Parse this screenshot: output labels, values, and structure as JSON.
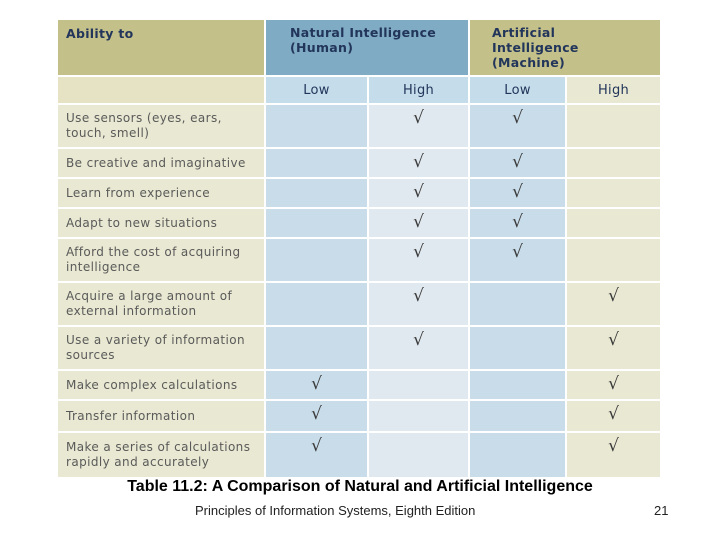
{
  "table": {
    "header": {
      "ability": "Ability to",
      "natural_line1": "Natural Intelligence",
      "natural_line2": "(Human)",
      "artificial_line1": "Artificial Intelligence",
      "artificial_line2": "(Machine)",
      "low": "Low",
      "high": "High"
    },
    "check_symbol": "√",
    "rows": [
      {
        "label": "Use sensors (eyes, ears, touch, smell)",
        "natural_low": "",
        "natural_high": "√",
        "artificial_low": "√",
        "artificial_high": ""
      },
      {
        "label": "Be creative and imaginative",
        "natural_low": "",
        "natural_high": "√",
        "artificial_low": "√",
        "artificial_high": ""
      },
      {
        "label": "Learn from experience",
        "natural_low": "",
        "natural_high": "√",
        "artificial_low": "√",
        "artificial_high": ""
      },
      {
        "label": "Adapt to new situations",
        "natural_low": "",
        "natural_high": "√",
        "artificial_low": "√",
        "artificial_high": ""
      },
      {
        "label": "Afford the cost of acquiring intelligence",
        "natural_low": "",
        "natural_high": "√",
        "artificial_low": "√",
        "artificial_high": ""
      },
      {
        "label": "Acquire a large amount of external information",
        "natural_low": "",
        "natural_high": "√",
        "artificial_low": "",
        "artificial_high": "√"
      },
      {
        "label": "Use a variety of information sources",
        "natural_low": "",
        "natural_high": "√",
        "artificial_low": "",
        "artificial_high": "√"
      },
      {
        "label": "Make complex calculations",
        "natural_low": "√",
        "natural_high": "",
        "artificial_low": "",
        "artificial_high": "√"
      },
      {
        "label": "Transfer information",
        "natural_low": "√",
        "natural_high": "",
        "artificial_low": "",
        "artificial_high": "√"
      },
      {
        "label": "Make a series of calculations rapidly and accurately",
        "natural_low": "√",
        "natural_high": "",
        "artificial_low": "",
        "artificial_high": "√"
      }
    ]
  },
  "caption": "Table 11.2: A Comparison of Natural and Artificial Intelligence",
  "footer": {
    "source": "Principles of Information Systems, Eighth Edition",
    "page_number": "21"
  }
}
